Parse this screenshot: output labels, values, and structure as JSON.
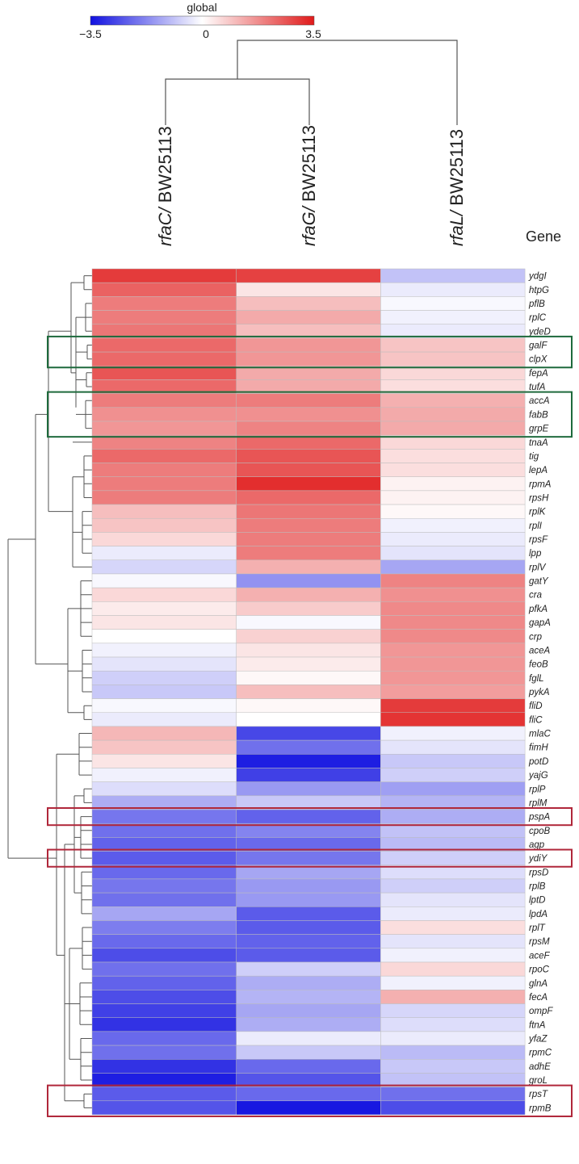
{
  "chart_data": {
    "type": "heatmap",
    "title": "",
    "colorbar": {
      "label": "global",
      "min": -3.5,
      "mid": 0,
      "max": 3.5,
      "tick_labels": [
        "−3.5",
        "0",
        "3.5"
      ],
      "colors": {
        "low": "#1010e0",
        "mid": "#ffffff",
        "high": "#e01a1a"
      }
    },
    "columns": [
      {
        "italic": "rfaC/",
        "plain": " BW25113"
      },
      {
        "italic": "rfaG/",
        "plain": " BW25113"
      },
      {
        "italic": "rfaL/",
        "plain": " BW25113"
      }
    ],
    "row_header": "Gene",
    "rows": [
      "ydgI",
      "htpG",
      "pflB",
      "rplC",
      "ydeD",
      "galF",
      "clpX",
      "fepA",
      "tufA",
      "accA",
      "fabB",
      "grpE",
      "tnaA",
      "tig",
      "lepA",
      "rpmA",
      "rpsH",
      "rplK",
      "rplI",
      "rpsF",
      "lpp",
      "rplV",
      "gatY",
      "cra",
      "pfkA",
      "gapA",
      "crp",
      "aceA",
      "feoB",
      "fglL",
      "pykA",
      "fliD",
      "fliC",
      "mlaC",
      "fimH",
      "potD",
      "yajG",
      "rplP",
      "rplM",
      "pspA",
      "cpoB",
      "agp",
      "ydiY",
      "rpsD",
      "rplB",
      "lptD",
      "lpdA",
      "rplT",
      "rpsM",
      "aceF",
      "rpoC",
      "glnA",
      "fecA",
      "ompF",
      "ftnA",
      "yfaZ",
      "rpmC",
      "adhE",
      "groL",
      "rpsT",
      "rpmB"
    ],
    "values": [
      [
        3.0,
        2.9,
        -0.9
      ],
      [
        2.4,
        0.4,
        -0.3
      ],
      [
        2.0,
        1.0,
        -0.1
      ],
      [
        2.0,
        1.3,
        -0.2
      ],
      [
        2.1,
        1.0,
        -0.3
      ],
      [
        2.3,
        1.6,
        0.9
      ],
      [
        2.3,
        1.6,
        0.9
      ],
      [
        2.6,
        1.3,
        0.6
      ],
      [
        2.3,
        1.3,
        0.5
      ],
      [
        2.0,
        2.0,
        1.2
      ],
      [
        1.7,
        1.7,
        1.3
      ],
      [
        1.6,
        1.9,
        1.3
      ],
      [
        1.9,
        2.3,
        0.6
      ],
      [
        2.3,
        2.6,
        0.5
      ],
      [
        2.0,
        2.6,
        0.5
      ],
      [
        2.0,
        3.2,
        0.2
      ],
      [
        2.0,
        2.3,
        0.2
      ],
      [
        1.0,
        2.1,
        0.1
      ],
      [
        0.9,
        2.0,
        -0.2
      ],
      [
        0.6,
        2.0,
        -0.3
      ],
      [
        -0.3,
        2.0,
        -0.4
      ],
      [
        -0.6,
        1.2,
        -1.3
      ],
      [
        -0.1,
        -1.6,
        1.9
      ],
      [
        0.6,
        1.2,
        1.7
      ],
      [
        0.3,
        0.8,
        1.8
      ],
      [
        0.4,
        -0.1,
        1.8
      ],
      [
        0.0,
        0.7,
        1.8
      ],
      [
        -0.2,
        0.4,
        1.6
      ],
      [
        -0.4,
        0.3,
        1.6
      ],
      [
        -0.7,
        0.1,
        1.6
      ],
      [
        -0.8,
        1.0,
        1.5
      ],
      [
        -0.1,
        0.1,
        3.0
      ],
      [
        -0.3,
        0.0,
        3.1
      ],
      [
        1.1,
        -2.7,
        -0.2
      ],
      [
        0.9,
        -2.1,
        -0.4
      ],
      [
        0.4,
        -3.3,
        -0.8
      ],
      [
        -0.2,
        -2.8,
        -0.7
      ],
      [
        -0.5,
        -1.5,
        -1.4
      ],
      [
        -1.2,
        -0.8,
        -1.1
      ],
      [
        -2.0,
        -2.3,
        -1.2
      ],
      [
        -2.1,
        -1.8,
        -0.9
      ],
      [
        -2.3,
        -2.2,
        -1.0
      ],
      [
        -2.4,
        -2.0,
        -0.7
      ],
      [
        -2.2,
        -1.3,
        -0.5
      ],
      [
        -2.0,
        -1.5,
        -0.7
      ],
      [
        -2.1,
        -1.5,
        -0.4
      ],
      [
        -1.3,
        -2.4,
        -0.3
      ],
      [
        -1.9,
        -2.4,
        0.5
      ],
      [
        -2.2,
        -2.3,
        -0.4
      ],
      [
        -2.6,
        -2.4,
        -0.2
      ],
      [
        -2.1,
        -0.7,
        0.6
      ],
      [
        -2.3,
        -1.2,
        -0.2
      ],
      [
        -2.6,
        -1.1,
        1.2
      ],
      [
        -2.8,
        -1.3,
        -0.6
      ],
      [
        -3.0,
        -1.2,
        -0.5
      ],
      [
        -2.2,
        -0.3,
        -0.3
      ],
      [
        -2.1,
        -0.8,
        -1.0
      ],
      [
        -3.0,
        -2.2,
        -0.8
      ],
      [
        -3.3,
        -2.5,
        -0.9
      ],
      [
        -2.4,
        -2.2,
        -2.1
      ],
      [
        -2.5,
        -3.4,
        -2.6
      ]
    ],
    "highlight_boxes": [
      {
        "rows": [
          "galF",
          "clpX"
        ],
        "color": "#1e6a3c"
      },
      {
        "rows": [
          "accA",
          "fabB",
          "grpE"
        ],
        "color": "#1e6a3c"
      },
      {
        "rows": [
          "pspA"
        ],
        "color": "#b0273a"
      },
      {
        "rows": [
          "ydiY"
        ],
        "color": "#b0273a"
      },
      {
        "rows": [
          "rpsT",
          "rpmB"
        ],
        "color": "#b0273a"
      }
    ]
  }
}
